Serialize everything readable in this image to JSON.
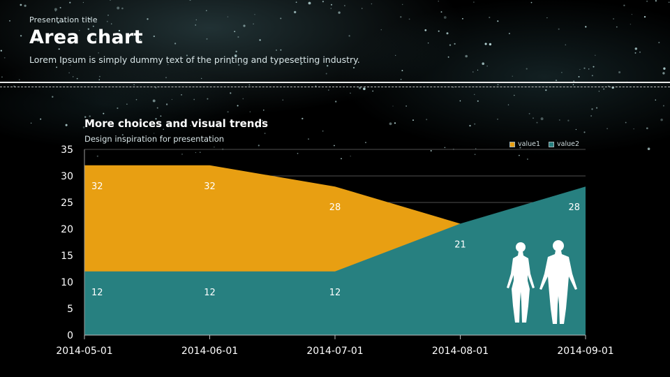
{
  "header": {
    "presentation_label": "Presentation title",
    "title": "Area chart",
    "subtitle": "Lorem Ipsum is simply dummy text of the printing and typesetting industry."
  },
  "chart_data": {
    "type": "area",
    "title": "More choices and visual trends",
    "subtitle": "Design inspiration for presentation",
    "x": [
      "2014-05-01",
      "2014-06-01",
      "2014-07-01",
      "2014-08-01",
      "2014-09-01"
    ],
    "ylim": [
      0,
      35
    ],
    "yticks": [
      0,
      5,
      10,
      15,
      20,
      25,
      30,
      35
    ],
    "grid": true,
    "legend_position": "top-right",
    "series": [
      {
        "name": "value1",
        "values": [
          32,
          32,
          28,
          21,
          21
        ],
        "color": "#e89f12"
      },
      {
        "name": "value2",
        "values": [
          12,
          12,
          12,
          21,
          28
        ],
        "color": "#278080"
      }
    ],
    "data_labels": [
      {
        "series": "value1",
        "x": "2014-05-01",
        "text": "32"
      },
      {
        "series": "value1",
        "x": "2014-06-01",
        "text": "32"
      },
      {
        "series": "value1",
        "x": "2014-07-01",
        "text": "28"
      },
      {
        "series": "value2",
        "x": "2014-05-01",
        "text": "12"
      },
      {
        "series": "value2",
        "x": "2014-06-01",
        "text": "12"
      },
      {
        "series": "value2",
        "x": "2014-07-01",
        "text": "12"
      },
      {
        "series": "value2",
        "x": "2014-08-01",
        "text": "21"
      },
      {
        "series": "value2",
        "x": "2014-09-01",
        "text": "28"
      }
    ]
  },
  "decor": {
    "illustration_icon": "human-figures-icon",
    "background": "starfield"
  }
}
